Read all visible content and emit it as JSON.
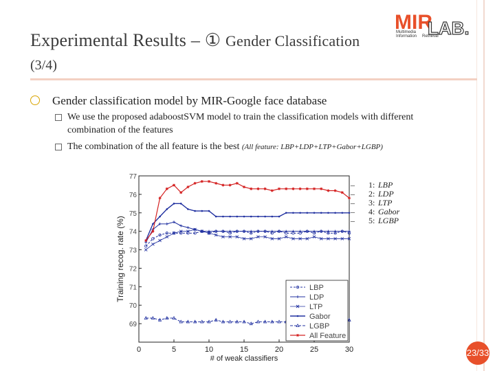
{
  "slide": {
    "title_main": "Experimental Results – ① ",
    "title_sub": "Gender Classification",
    "title_line2": "(3/4)",
    "bullet": "Gender classification model by MIR-Google face database",
    "sub1_line1": "We use the proposed adaboostSVM model to train the classification models with different",
    "sub1_line2": "combination of  the features",
    "sub2_main": "The combination of the all feature is the best ",
    "sub2_note": "(All feature: LBP+LDP+LTP+Gabor+LGBP)",
    "page": "23/33"
  },
  "logo": {
    "mir": "MIR",
    "lab": "LAB.",
    "line1": "Multimedia",
    "line2": "Information",
    "line3": "Retrieval"
  },
  "legend_top": [
    {
      "key": "1:",
      "value": "LBP"
    },
    {
      "key": "2:",
      "value": "LDP"
    },
    {
      "key": "3:",
      "value": "LTP"
    },
    {
      "key": "4:",
      "value": "Gabor"
    },
    {
      "key": "5:",
      "value": "LGBP"
    }
  ],
  "colors": {
    "red": "#d42020",
    "blue": "#2030a0",
    "accent": "#e8502a",
    "bullet": "#d9a400"
  },
  "chart_data": {
    "type": "line",
    "xlabel": "# of weak classifiers",
    "ylabel": "Training recog. rate (%)",
    "xlim": [
      0,
      30
    ],
    "ylim": [
      68,
      77
    ],
    "xticks": [
      0,
      5,
      10,
      15,
      20,
      25,
      30
    ],
    "yticks": [
      77,
      76,
      75,
      74,
      73,
      72,
      71,
      70,
      69
    ],
    "ytick_labels": [
      "77",
      "76",
      "75",
      "74",
      "73",
      "72",
      "71",
      "70",
      "69"
    ],
    "x": [
      1,
      2,
      3,
      4,
      5,
      6,
      7,
      8,
      9,
      10,
      11,
      12,
      13,
      14,
      15,
      16,
      17,
      18,
      19,
      20,
      21,
      22,
      23,
      24,
      25,
      26,
      27,
      28,
      29,
      30
    ],
    "legend": [
      "LBP",
      "LDP",
      "LTP",
      "Gabor",
      "LGBP",
      "All Feature"
    ],
    "series": [
      {
        "name": "LBP",
        "marker": "o",
        "values": [
          73.2,
          73.6,
          73.8,
          73.9,
          73.9,
          73.9,
          73.9,
          73.9,
          74.0,
          73.9,
          74.0,
          74.0,
          73.9,
          74.0,
          74.0,
          73.9,
          74.0,
          74.0,
          73.9,
          74.0,
          73.9,
          73.9,
          73.9,
          74.0,
          73.9,
          74.0,
          73.9,
          73.9,
          74.0,
          73.9
        ]
      },
      {
        "name": "LDP",
        "marker": "+",
        "values": [
          73.4,
          74.1,
          74.4,
          74.4,
          74.5,
          74.3,
          74.2,
          74.1,
          74.0,
          74.0,
          74.0,
          74.0,
          74.0,
          74.0,
          74.0,
          74.0,
          74.0,
          74.0,
          74.0,
          74.0,
          74.0,
          74.0,
          74.0,
          74.0,
          74.0,
          74.0,
          74.0,
          74.0,
          74.0,
          74.0
        ]
      },
      {
        "name": "LTP",
        "marker": "x",
        "values": [
          73.0,
          73.3,
          73.5,
          73.7,
          73.9,
          74.0,
          74.0,
          74.1,
          74.0,
          73.9,
          73.8,
          73.7,
          73.7,
          73.7,
          73.6,
          73.6,
          73.7,
          73.7,
          73.6,
          73.6,
          73.7,
          73.6,
          73.6,
          73.6,
          73.7,
          73.6,
          73.6,
          73.6,
          73.6,
          73.6
        ]
      },
      {
        "name": "Gabor",
        "marker": "·",
        "values": [
          73.5,
          74.4,
          74.8,
          75.2,
          75.5,
          75.5,
          75.2,
          75.1,
          75.1,
          75.1,
          74.8,
          74.8,
          74.8,
          74.8,
          74.8,
          74.8,
          74.8,
          74.8,
          74.8,
          74.8,
          75.0,
          75.0,
          75.0,
          75.0,
          75.0,
          75.0,
          75.0,
          75.0,
          75.0,
          75.0
        ]
      },
      {
        "name": "LGBP",
        "marker": "△",
        "values": [
          69.3,
          69.3,
          69.2,
          69.3,
          69.3,
          69.1,
          69.1,
          69.1,
          69.1,
          69.1,
          69.2,
          69.1,
          69.1,
          69.1,
          69.1,
          69.0,
          69.1,
          69.1,
          69.1,
          69.1,
          69.1,
          69.1,
          69.0,
          69.1,
          69.1,
          69.2,
          69.1,
          69.2,
          69.0,
          69.2
        ]
      },
      {
        "name": "All Feature",
        "marker": "*",
        "values": [
          73.5,
          74.0,
          75.8,
          76.3,
          76.5,
          76.1,
          76.4,
          76.6,
          76.7,
          76.7,
          76.6,
          76.5,
          76.5,
          76.6,
          76.4,
          76.3,
          76.3,
          76.3,
          76.2,
          76.3,
          76.3,
          76.3,
          76.3,
          76.3,
          76.3,
          76.3,
          76.2,
          76.2,
          76.1,
          75.8
        ]
      }
    ]
  }
}
